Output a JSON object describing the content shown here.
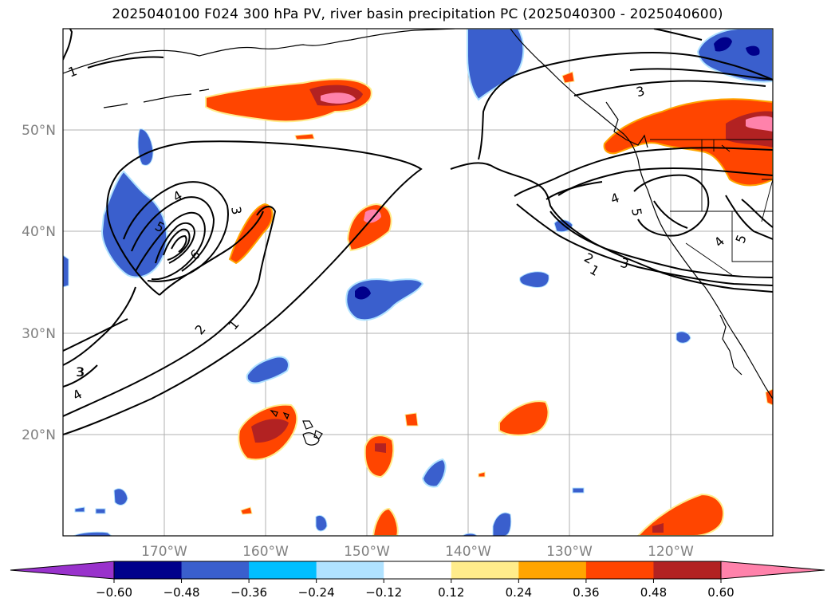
{
  "title": "2025040100 F024 300 hPa PV, river basin precipitation PC (2025040300 - 2025040600)",
  "lat_labels": [
    "50°N",
    "40°N",
    "30°N",
    "20°N"
  ],
  "lon_labels": [
    "170°W",
    "160°W",
    "150°W",
    "140°W",
    "130°W",
    "120°W"
  ],
  "colorbar": {
    "ticks": [
      "−0.60",
      "−0.48",
      "−0.36",
      "−0.24",
      "−0.12",
      "0.12",
      "0.24",
      "0.36",
      "0.48",
      "0.60"
    ],
    "colors": [
      "#9932cc",
      "#00008b",
      "#3a5fcd",
      "#00bfff",
      "#b0e2ff",
      "#ffffff",
      "#ffec8b",
      "#ffa500",
      "#ff4500",
      "#b22222",
      "#ff82ab"
    ]
  },
  "contour_labels": [
    "1",
    "3",
    "5",
    "4",
    "3",
    "6",
    "2",
    "1",
    "3",
    "4",
    "3",
    "2",
    "1",
    "4",
    "3",
    "5",
    "4",
    "5"
  ],
  "map_extent": {
    "lon": [
      -180,
      -110
    ],
    "lat": [
      10,
      60
    ]
  }
}
